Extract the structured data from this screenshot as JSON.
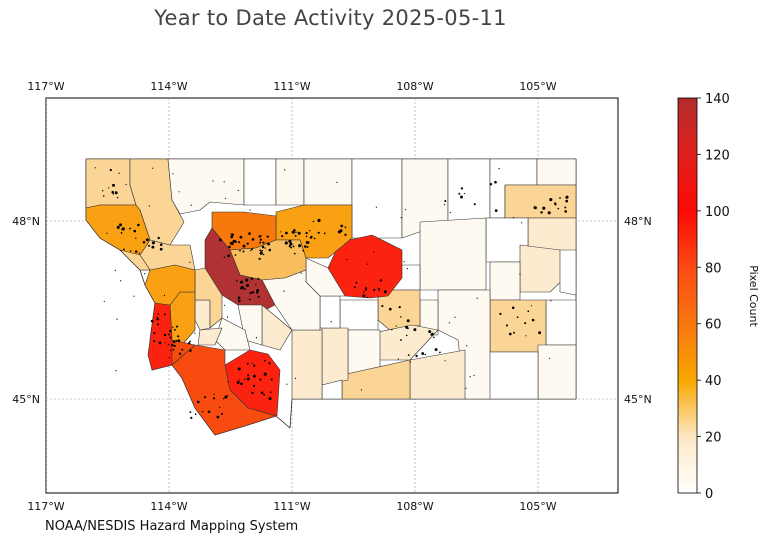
{
  "title": "Year to Date Activity 2025-05-11",
  "credit": "NOAA/NESDIS Hazard Mapping System",
  "colorbar": {
    "label": "Pixel Count",
    "ticks": [
      "0",
      "20",
      "40",
      "60",
      "80",
      "100",
      "120",
      "140"
    ],
    "min": 0,
    "max": 140,
    "colors": [
      "#fffdf9",
      "#fff4e1",
      "#fde8c4",
      "#fbd89c",
      "#f9c26a",
      "#f7a82c",
      "#f99800",
      "#f56d10",
      "#fd3914",
      "#fb1c04",
      "#dd1d19",
      "#b22f2f"
    ]
  },
  "axes": {
    "lon_labels": [
      "117°W",
      "114°W",
      "111°W",
      "108°W",
      "105°W"
    ],
    "lat_labels": [
      "48°N",
      "45°N"
    ]
  },
  "map": {
    "region": "Montana counties",
    "fill_colors": {
      "none": "#ffffff",
      "very_low": "#fffaf1",
      "low": "#fdebd0",
      "light": "#fbd596",
      "medium": "#f9bd5e",
      "orange": "#f9a013",
      "dark_orange": "#f7780b",
      "red_orange": "#f84b10",
      "red": "#fc2210",
      "dark_red": "#b03232"
    }
  }
}
